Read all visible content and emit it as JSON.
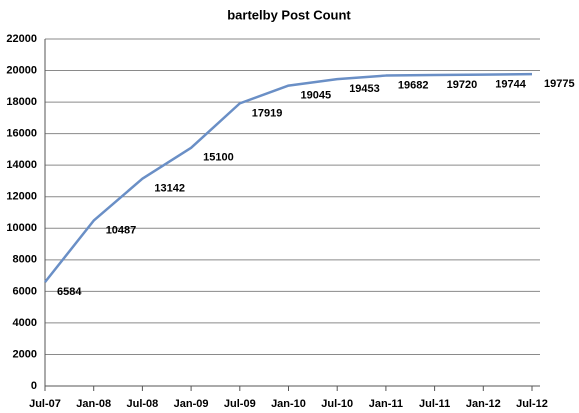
{
  "chart_data": {
    "type": "line",
    "title": "bartelby Post Count",
    "categories": [
      "Jul-07",
      "Jan-08",
      "Jul-08",
      "Jan-09",
      "Jul-09",
      "Jan-10",
      "Jul-10",
      "Jan-11",
      "Jul-11",
      "Jan-12",
      "Jul-12"
    ],
    "series": [
      {
        "name": "Post Count",
        "color": "#6a8fc6",
        "values": [
          6584,
          10487,
          13142,
          15100,
          17919,
          19045,
          19453,
          19682,
          19720,
          19744,
          19775
        ]
      }
    ],
    "ylim": [
      0,
      22000
    ],
    "yticks": [
      0,
      2000,
      4000,
      6000,
      8000,
      10000,
      12000,
      14000,
      16000,
      18000,
      20000,
      22000
    ],
    "grid": true
  }
}
